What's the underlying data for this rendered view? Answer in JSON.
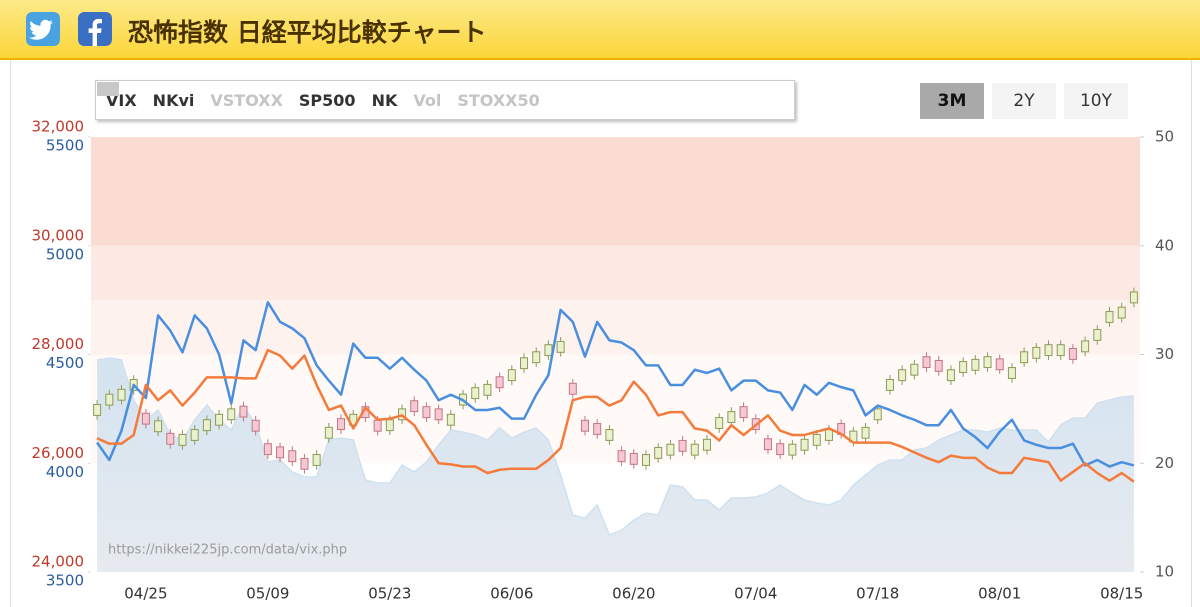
{
  "header": {
    "title": "恐怖指数 日経平均比較チャート"
  },
  "ranges": [
    "3M",
    "2Y",
    "10Y"
  ],
  "selected_range": "3M",
  "chart_data": {
    "type": "candlestick",
    "watermark": "https://nikkei225jp.com/data/vix.php",
    "categories": [
      null,
      null,
      null,
      null,
      "04/25",
      null,
      null,
      null,
      null,
      null,
      null,
      null,
      null,
      null,
      "05/09",
      null,
      null,
      null,
      null,
      null,
      null,
      null,
      null,
      null,
      "05/23",
      null,
      null,
      null,
      null,
      null,
      null,
      null,
      null,
      null,
      "06/06",
      null,
      null,
      null,
      null,
      null,
      null,
      null,
      null,
      null,
      "06/20",
      null,
      null,
      null,
      null,
      null,
      null,
      null,
      null,
      null,
      "07/04",
      null,
      null,
      null,
      null,
      null,
      null,
      null,
      null,
      null,
      "07/18",
      null,
      null,
      null,
      null,
      null,
      null,
      null,
      null,
      null,
      "08/01",
      null,
      null,
      null,
      null,
      null,
      null,
      null,
      null,
      null,
      "08/15",
      null
    ],
    "ylim": [
      24000,
      32000
    ],
    "yticks": [
      {
        "value": 24000,
        "label": "24,000"
      },
      {
        "value": 26000,
        "label": "26,000"
      },
      {
        "value": 28000,
        "label": "28,000"
      },
      {
        "value": 30000,
        "label": "30,000"
      },
      {
        "value": 32000,
        "label": "32,000"
      }
    ],
    "y2lim": [
      10,
      50
    ],
    "y2ticks": [
      10,
      20,
      30,
      40,
      50
    ],
    "y3lim": [
      3500,
      5500
    ],
    "y3ticks": [
      3500,
      4000,
      4500,
      5000,
      5500
    ],
    "bands": [
      {
        "from": 40,
        "to": 50,
        "color": "#fadcd3"
      },
      {
        "from": 35,
        "to": 40,
        "color": "#fde9e3"
      },
      {
        "from": 30,
        "to": 35,
        "color": "#fef2ee"
      },
      {
        "from": 20,
        "to": 30,
        "color": "#fff9f7"
      }
    ],
    "series": [
      {
        "name": "VIX",
        "kind": "line",
        "axis": "y2",
        "color": "#4a8fdf",
        "hidden": false,
        "values": [
          21.9,
          20.3,
          23.0,
          27.2,
          26.0,
          33.6,
          32.2,
          30.2,
          33.6,
          32.4,
          30.0,
          25.5,
          31.3,
          30.4,
          34.8,
          33.0,
          32.4,
          31.5,
          29.0,
          27.6,
          26.3,
          31.0,
          29.7,
          29.7,
          28.7,
          29.7,
          28.6,
          27.6,
          25.8,
          26.3,
          25.8,
          24.9,
          24.9,
          25.1,
          24.1,
          24.1,
          26.3,
          28.1,
          34.1,
          33.0,
          29.8,
          33.0,
          31.3,
          31.1,
          30.4,
          29.0,
          29.0,
          27.2,
          27.2,
          28.6,
          28.3,
          28.7,
          26.7,
          27.6,
          27.6,
          26.7,
          26.5,
          24.9,
          27.2,
          26.3,
          27.4,
          27.0,
          26.7,
          24.4,
          25.3,
          24.9,
          24.4,
          24.0,
          23.5,
          23.5,
          24.9,
          23.2,
          22.4,
          21.4,
          22.9,
          24.0,
          22.1,
          21.7,
          21.4,
          21.4,
          21.8,
          19.8,
          20.3,
          19.7,
          20.1,
          19.8
        ]
      },
      {
        "name": "NKvi",
        "kind": "line",
        "axis": "y2",
        "color": "#f47b3b",
        "hidden": false,
        "values": [
          22.3,
          21.8,
          21.8,
          22.6,
          27.2,
          25.8,
          26.7,
          25.3,
          26.5,
          27.9,
          27.9,
          27.9,
          27.8,
          27.8,
          30.4,
          29.9,
          28.7,
          29.9,
          27.2,
          24.9,
          25.3,
          23.2,
          25.1,
          24.0,
          24.1,
          24.4,
          23.5,
          21.7,
          20.0,
          19.9,
          19.7,
          19.7,
          19.1,
          19.4,
          19.5,
          19.5,
          19.5,
          20.3,
          21.4,
          25.8,
          26.1,
          26.1,
          25.3,
          25.8,
          27.5,
          26.3,
          24.4,
          24.7,
          24.7,
          23.2,
          23.0,
          22.1,
          23.5,
          22.6,
          23.5,
          24.4,
          23.0,
          22.6,
          22.6,
          22.9,
          23.2,
          22.7,
          21.9,
          21.9,
          21.9,
          21.9,
          21.5,
          21.0,
          20.5,
          20.1,
          20.7,
          20.5,
          20.5,
          19.6,
          19.1,
          19.1,
          20.5,
          20.3,
          20.1,
          18.4,
          19.2,
          20.0,
          19.1,
          18.4,
          19.1,
          18.3
        ]
      },
      {
        "name": "VSTOXX",
        "kind": "line",
        "color": "#cccccc",
        "hidden": true
      },
      {
        "name": "SP500",
        "kind": "area",
        "axis": "y3",
        "color": "#cfe1ef",
        "hidden": false,
        "values": [
          4475,
          4484,
          4475,
          4291,
          4199,
          4245,
          4130,
          4107,
          4199,
          4268,
          4199,
          4153,
          4268,
          4176,
          4006,
          4015,
          3960,
          3937,
          3937,
          4107,
          4116,
          4107,
          3923,
          3909,
          3909,
          3992,
          3960,
          4006,
          4084,
          4153,
          4143,
          4130,
          4107,
          4162,
          4116,
          4143,
          4162,
          4107,
          3946,
          3762,
          3748,
          3808,
          3670,
          3693,
          3739,
          3771,
          3762,
          3900,
          3891,
          3831,
          3831,
          3785,
          3840,
          3840,
          3845,
          3863,
          3900,
          3863,
          3831,
          3817,
          3808,
          3831,
          3900,
          3946,
          3992,
          4015,
          4015,
          4061,
          4070,
          4107,
          4130,
          4153,
          4153,
          4143,
          4162,
          4153,
          4153,
          4153,
          4098,
          4176,
          4208,
          4208,
          4277,
          4291,
          4305,
          4309
        ]
      },
      {
        "name": "NK",
        "kind": "candle",
        "color": "#f8c6d1",
        "up_color": "#e9f1cd",
        "up_stroke": "#8d9a5a",
        "down_color": "#f6c8d2",
        "down_stroke": "#c27686",
        "hidden": false,
        "open": [
          26880,
          27070,
          27160,
          27340,
          26920,
          26580,
          26550,
          26330,
          26420,
          26600,
          26700,
          26800,
          27050,
          26790,
          26360,
          26300,
          26230,
          26090,
          25960,
          26460,
          26820,
          26700,
          27040,
          26790,
          26600,
          26800,
          27150,
          27040,
          27000,
          26700,
          27070,
          27190,
          27250,
          27590,
          27520,
          27740,
          27850,
          27980,
          28040,
          27470,
          26790,
          26730,
          26420,
          26230,
          26180,
          25960,
          26090,
          26150,
          26420,
          26150,
          26240,
          26640,
          26750,
          27040,
          26820,
          26450,
          26360,
          26150,
          26240,
          26330,
          26420,
          26730,
          26390,
          26460,
          26800,
          27340,
          27520,
          27620,
          27960,
          27890,
          27520,
          27670,
          27710,
          27760,
          27920,
          27560,
          27850,
          27930,
          27980,
          27980,
          28110,
          28050,
          28260,
          28590,
          28670,
          28950
        ],
        "high": [
          27160,
          27350,
          27440,
          27620,
          27000,
          26860,
          26630,
          26610,
          26700,
          26880,
          26980,
          27080,
          27130,
          26870,
          26440,
          26380,
          26310,
          26170,
          26240,
          26740,
          26900,
          26980,
          27120,
          26870,
          26880,
          27080,
          27230,
          27120,
          27080,
          26980,
          27350,
          27470,
          27530,
          27670,
          27800,
          28020,
          28130,
          28260,
          28320,
          27550,
          26870,
          26810,
          26700,
          26310,
          26260,
          26240,
          26370,
          26430,
          26500,
          26430,
          26520,
          26920,
          27030,
          27120,
          26900,
          26530,
          26440,
          26430,
          26520,
          26610,
          26700,
          26810,
          26670,
          26740,
          27080,
          27620,
          27800,
          27900,
          28040,
          27970,
          27800,
          27950,
          27990,
          28040,
          28000,
          27840,
          28130,
          28210,
          28260,
          28260,
          28190,
          28330,
          28540,
          28870,
          28950,
          29230
        ],
        "low": [
          26800,
          26990,
          27080,
          27260,
          26640,
          26500,
          26270,
          26250,
          26340,
          26520,
          26620,
          26720,
          26770,
          26510,
          26080,
          26020,
          25950,
          25810,
          25880,
          26380,
          26540,
          26620,
          26760,
          26510,
          26520,
          26720,
          26870,
          26760,
          26720,
          26620,
          26990,
          27110,
          27170,
          27310,
          27440,
          27660,
          27770,
          27900,
          27960,
          27190,
          26510,
          26450,
          26340,
          25950,
          25900,
          25880,
          26010,
          26070,
          26140,
          26070,
          26160,
          26560,
          26670,
          26760,
          26540,
          26170,
          26080,
          26070,
          26160,
          26250,
          26340,
          26450,
          26310,
          26380,
          26720,
          27260,
          27440,
          27540,
          27680,
          27610,
          27440,
          27590,
          27630,
          27680,
          27640,
          27480,
          27770,
          27850,
          27900,
          27900,
          27830,
          27970,
          28180,
          28510,
          28590,
          28870
        ],
        "close": [
          27080,
          27270,
          27360,
          27540,
          26720,
          26780,
          26350,
          26530,
          26620,
          26800,
          26900,
          27000,
          26850,
          26590,
          26160,
          26100,
          26030,
          25890,
          26160,
          26660,
          26620,
          26900,
          26840,
          26590,
          26800,
          27000,
          26950,
          26840,
          26800,
          26900,
          27270,
          27390,
          27450,
          27390,
          27720,
          27940,
          28050,
          28180,
          28240,
          27270,
          26590,
          26530,
          26620,
          26030,
          25980,
          26160,
          26290,
          26350,
          26220,
          26350,
          26440,
          26840,
          26950,
          26840,
          26620,
          26250,
          26160,
          26350,
          26440,
          26530,
          26620,
          26530,
          26590,
          26660,
          27000,
          27540,
          27720,
          27820,
          27760,
          27690,
          27720,
          27870,
          27910,
          27960,
          27720,
          27760,
          28050,
          28130,
          28180,
          28180,
          27910,
          28250,
          28460,
          28790,
          28870,
          29150
        ]
      },
      {
        "name": "Vol",
        "kind": "box",
        "color": "#c8c8c8",
        "hidden": true
      },
      {
        "name": "STOXX50",
        "kind": "box",
        "color": "#c8c8c8",
        "hidden": true
      }
    ]
  }
}
